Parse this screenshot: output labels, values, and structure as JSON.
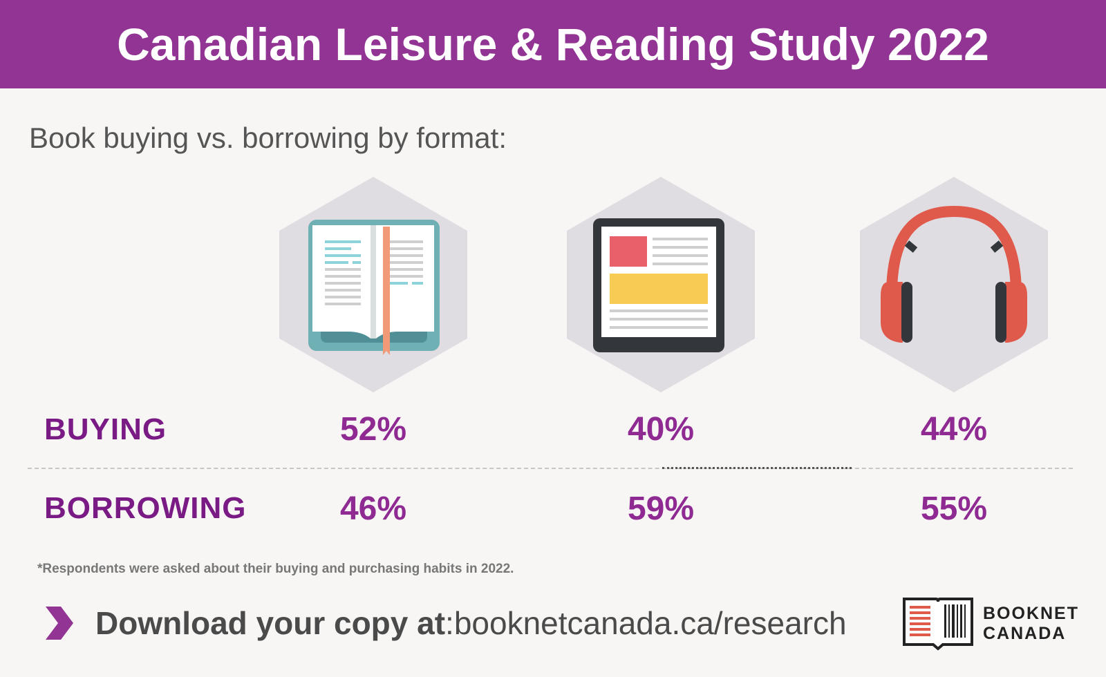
{
  "header": {
    "title": "Canadian Leisure & Reading Study 2022"
  },
  "subtitle": "Book buying vs. borrowing by format:",
  "formats": [
    {
      "icon": "open-book-icon",
      "buying": "52%",
      "borrowing": "46%"
    },
    {
      "icon": "tablet-icon",
      "buying": "40%",
      "borrowing": "59%"
    },
    {
      "icon": "headphones-icon",
      "buying": "44%",
      "borrowing": "55%"
    }
  ],
  "rows": {
    "buying_label": "BUYING",
    "borrowing_label": "BORROWING"
  },
  "footnote": "*Respondents were asked about their buying and purchasing habits in 2022.",
  "download": {
    "lead": "Download your copy at",
    "separator": ": ",
    "url": "booknetcanada.ca/research"
  },
  "logo": {
    "line1": "BOOKNET",
    "line2": "CANADA"
  },
  "colors": {
    "header": "#923493",
    "accent": "#8e2a92",
    "hexagon": "#e0dde2",
    "headphones": "#e05a4c",
    "book_cover": "#6fb0b5",
    "bookmark": "#f29a78"
  }
}
